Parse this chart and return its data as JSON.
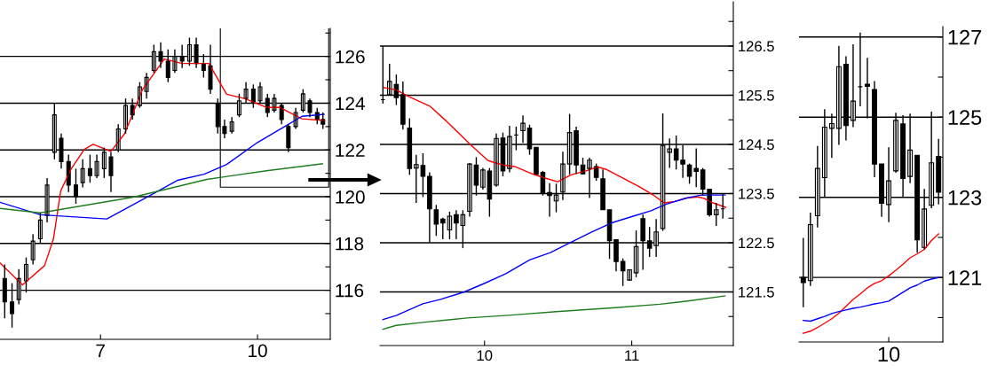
{
  "chart_data": [
    {
      "type": "candlestick",
      "xlim": [
        5.08,
        11.39
      ],
      "xticks": [
        7,
        10
      ],
      "ylim": [
        113.9,
        127.2
      ],
      "yticks": [
        {
          "value": 115,
          "label": null
        },
        116,
        {
          "value": 117,
          "label": null
        },
        118,
        {
          "value": 119,
          "label": null
        },
        120,
        {
          "value": 121,
          "label": null
        },
        122,
        {
          "value": 123,
          "label": null
        },
        124,
        {
          "value": 125,
          "label": null
        },
        126,
        {
          "value": 127,
          "label": null
        }
      ],
      "grid": "y",
      "x": [
        5.17,
        5.31,
        5.44,
        5.58,
        5.71,
        5.85,
        5.98,
        6.12,
        6.25,
        6.39,
        6.53,
        6.66,
        6.8,
        6.93,
        7.07,
        7.2,
        7.34,
        7.48,
        7.61,
        7.75,
        7.88,
        8.02,
        8.15,
        8.29,
        8.42,
        8.56,
        8.7,
        8.83,
        8.97,
        9.1,
        9.24,
        9.37,
        9.51,
        9.65,
        9.78,
        9.92,
        10.05,
        10.19,
        10.32,
        10.46,
        10.59,
        10.73,
        10.87,
        11.0,
        11.14,
        11.25
      ],
      "ohlc": [
        [
          116.5,
          117.1,
          114.8,
          115.5
        ],
        [
          115.5,
          116.3,
          114.4,
          115.0
        ],
        [
          115.6,
          116.9,
          115.4,
          116.5
        ],
        [
          116.4,
          117.4,
          115.9,
          117.1
        ],
        [
          117.3,
          118.4,
          117.1,
          118.1
        ],
        [
          118.2,
          119.3,
          118.0,
          119.0
        ],
        [
          119.2,
          120.8,
          118.9,
          120.5
        ],
        [
          121.9,
          124.0,
          121.6,
          123.5
        ],
        [
          122.5,
          122.7,
          121.2,
          121.5
        ],
        [
          121.5,
          121.8,
          120.2,
          120.5
        ],
        [
          120.5,
          121.2,
          119.7,
          120.0
        ],
        [
          120.6,
          121.6,
          120.4,
          121.2
        ],
        [
          121.2,
          121.8,
          120.6,
          120.9
        ],
        [
          120.9,
          121.8,
          120.8,
          121.5
        ],
        [
          121.2,
          122.1,
          120.8,
          121.9
        ],
        [
          121.7,
          121.9,
          120.2,
          120.9
        ],
        [
          122.0,
          123.1,
          121.9,
          122.9
        ],
        [
          122.9,
          124.2,
          122.7,
          123.9
        ],
        [
          123.9,
          124.2,
          123.3,
          123.5
        ],
        [
          123.9,
          124.9,
          123.8,
          124.7
        ],
        [
          124.5,
          125.3,
          124.2,
          125.1
        ],
        [
          125.4,
          126.5,
          125.3,
          126.2
        ],
        [
          126.2,
          126.6,
          125.5,
          125.8
        ],
        [
          125.8,
          126.3,
          124.9,
          125.1
        ],
        [
          125.4,
          126.3,
          125.3,
          126.0
        ],
        [
          126.0,
          126.5,
          125.5,
          125.8
        ],
        [
          125.8,
          126.8,
          125.6,
          126.5
        ],
        [
          126.5,
          126.8,
          125.5,
          125.7
        ],
        [
          125.7,
          126.1,
          125.1,
          125.4
        ],
        [
          125.6,
          126.5,
          124.4,
          124.6
        ],
        [
          124.0,
          124.2,
          122.7,
          123.0
        ],
        [
          123.0,
          123.3,
          122.5,
          122.7
        ],
        [
          122.8,
          123.4,
          122.7,
          123.2
        ],
        [
          123.5,
          124.4,
          123.4,
          124.1
        ],
        [
          124.2,
          124.9,
          124.0,
          124.6
        ],
        [
          124.6,
          124.8,
          123.8,
          124.0
        ],
        [
          124.1,
          124.9,
          124.0,
          124.7
        ],
        [
          124.2,
          124.4,
          123.4,
          123.6
        ],
        [
          123.7,
          124.4,
          123.6,
          124.2
        ],
        [
          123.9,
          124.0,
          123.1,
          123.3
        ],
        [
          123.0,
          123.1,
          121.9,
          122.1
        ],
        [
          123.0,
          123.8,
          122.9,
          123.6
        ],
        [
          123.7,
          124.6,
          123.6,
          124.4
        ],
        [
          124.1,
          124.2,
          123.4,
          123.6
        ],
        [
          123.6,
          123.8,
          123.1,
          123.3
        ],
        [
          123.3,
          123.6,
          122.9,
          123.1
        ]
      ],
      "series": [
        {
          "type": "line",
          "color": "#ff0000",
          "x": [
            5.08,
            5.51,
            5.93,
            6.1,
            6.24,
            6.44,
            6.69,
            6.86,
            7.2,
            7.46,
            7.8,
            8.22,
            8.56,
            9.07,
            9.41,
            9.75,
            10.17,
            10.42,
            10.85,
            11.27
          ],
          "values": [
            117.17,
            116.23,
            117.05,
            118.18,
            120.25,
            121.19,
            122.02,
            122.24,
            121.94,
            122.69,
            124.57,
            125.89,
            125.7,
            125.7,
            124.38,
            124.2,
            123.82,
            123.82,
            123.33,
            123.26
          ]
        },
        {
          "type": "line",
          "color": "#0000ff",
          "x": [
            5.08,
            5.85,
            7.12,
            7.8,
            8.47,
            8.98,
            9.41,
            10.0,
            10.51,
            10.85,
            11.27
          ],
          "values": [
            119.76,
            119.23,
            119.05,
            119.87,
            120.7,
            120.96,
            121.38,
            122.32,
            122.99,
            123.44,
            123.52
          ]
        },
        {
          "type": "line",
          "color": "#1e7d1e",
          "x": [
            5.08,
            5.85,
            7.63,
            9.03,
            10.17,
            11.24
          ],
          "values": [
            119.5,
            119.31,
            119.98,
            120.74,
            121.11,
            121.41
          ]
        }
      ]
    },
    {
      "type": "candlestick",
      "xlim": [
        9.29,
        11.69
      ],
      "xticks": [
        10,
        11
      ],
      "ylim": [
        120.41,
        127.4
      ],
      "yticks": [
        {
          "value": 121,
          "label": null
        },
        121.5,
        {
          "value": 122,
          "label": null
        },
        122.5,
        {
          "value": 123,
          "label": null
        },
        123.5,
        {
          "value": 124,
          "label": null
        },
        124.5,
        {
          "value": 125,
          "label": null
        },
        125.5,
        {
          "value": 126,
          "label": null
        },
        126.5,
        {
          "value": 127,
          "label": null
        }
      ],
      "grid": "y",
      "x": [
        9.31,
        9.355,
        9.401,
        9.446,
        9.491,
        9.536,
        9.582,
        9.627,
        9.672,
        9.717,
        9.763,
        9.808,
        9.853,
        9.899,
        9.944,
        9.989,
        10.034,
        10.08,
        10.125,
        10.17,
        10.215,
        10.261,
        10.306,
        10.351,
        10.396,
        10.442,
        10.487,
        10.532,
        10.578,
        10.623,
        10.668,
        10.713,
        10.759,
        10.804,
        10.849,
        10.894,
        10.94,
        10.985,
        11.03,
        11.076,
        11.121,
        11.166,
        11.211,
        11.257,
        11.302,
        11.347,
        11.392,
        11.438,
        11.483,
        11.528,
        11.574,
        11.619
      ],
      "ohlc": [
        [
          125.41,
          126.49,
          125.33,
          125.41
        ],
        [
          125.51,
          126.14,
          125.51,
          125.78
        ],
        [
          125.72,
          125.92,
          125.3,
          125.45
        ],
        [
          125.51,
          125.78,
          124.8,
          124.91
        ],
        [
          124.83,
          125.03,
          123.88,
          124.01
        ],
        [
          124.02,
          124.29,
          123.31,
          124.09
        ],
        [
          124.07,
          124.32,
          123.43,
          123.85
        ],
        [
          123.85,
          123.93,
          122.51,
          123.19
        ],
        [
          123.17,
          123.27,
          122.64,
          122.88
        ],
        [
          122.98,
          123.01,
          122.57,
          122.9
        ],
        [
          122.76,
          123.13,
          122.57,
          123.04
        ],
        [
          123.07,
          123.16,
          122.57,
          122.9
        ],
        [
          122.85,
          123.16,
          122.39,
          123.07
        ],
        [
          123.14,
          124.12,
          123.03,
          124.1
        ],
        [
          124.08,
          124.24,
          123.46,
          123.67
        ],
        [
          123.63,
          124.02,
          123.58,
          123.98
        ],
        [
          123.96,
          124.02,
          123.03,
          123.39
        ],
        [
          123.67,
          124.72,
          123.64,
          124.62
        ],
        [
          124.63,
          124.74,
          123.85,
          123.96
        ],
        [
          124.01,
          124.88,
          123.93,
          124.66
        ],
        [
          124.69,
          124.86,
          124.38,
          124.69
        ],
        [
          124.78,
          125.09,
          124.53,
          124.93
        ],
        [
          124.83,
          124.9,
          124.29,
          124.41
        ],
        [
          124.44,
          124.44,
          123.88,
          123.89
        ],
        [
          123.93,
          123.96,
          123.46,
          123.51
        ],
        [
          123.52,
          123.71,
          123.03,
          123.46
        ],
        [
          123.35,
          123.7,
          123.12,
          123.47
        ],
        [
          123.53,
          124.35,
          123.37,
          124.1
        ],
        [
          124.1,
          125.12,
          123.89,
          124.74
        ],
        [
          124.78,
          124.86,
          123.9,
          124.08
        ],
        [
          124.08,
          124.23,
          123.89,
          123.9
        ],
        [
          124.01,
          124.23,
          123.41,
          124.18
        ],
        [
          124.05,
          124.11,
          123.76,
          123.83
        ],
        [
          123.8,
          123.99,
          123.17,
          123.17
        ],
        [
          123.17,
          123.17,
          122.17,
          122.54
        ],
        [
          122.56,
          122.57,
          121.92,
          122.12
        ],
        [
          122.12,
          122.18,
          121.62,
          121.93
        ],
        [
          121.74,
          121.95,
          121.73,
          121.95
        ],
        [
          121.89,
          122.75,
          121.8,
          122.42
        ],
        [
          122.99,
          123.07,
          121.95,
          122.54
        ],
        [
          122.54,
          122.82,
          122.21,
          122.39
        ],
        [
          122.44,
          122.98,
          122.21,
          122.72
        ],
        [
          122.79,
          125.13,
          122.74,
          124.48
        ],
        [
          124.34,
          124.62,
          124.02,
          124.41
        ],
        [
          124.41,
          124.68,
          123.99,
          124.18
        ],
        [
          124.18,
          124.48,
          123.82,
          124.1
        ],
        [
          124.08,
          124.11,
          123.7,
          123.85
        ],
        [
          124.01,
          124.42,
          123.63,
          123.95
        ],
        [
          123.98,
          124.02,
          123.46,
          123.59
        ],
        [
          123.59,
          123.59,
          123.03,
          123.07
        ],
        [
          123.07,
          123.31,
          122.84,
          123.17
        ],
        [
          123.19,
          123.49,
          122.99,
          123.19
        ]
      ],
      "series": [
        {
          "type": "line",
          "color": "#ff0000",
          "x": [
            9.31,
            9.4,
            9.481,
            9.632,
            9.742,
            9.903,
            10.024,
            10.125,
            10.205,
            10.326,
            10.406,
            10.497,
            10.588,
            10.688,
            10.769,
            10.829,
            10.93,
            11.05,
            11.151,
            11.221,
            11.292,
            11.372,
            11.453,
            11.493,
            11.553,
            11.638
          ],
          "values": [
            125.66,
            125.61,
            125.48,
            125.27,
            124.97,
            124.5,
            124.17,
            124.08,
            124.05,
            123.9,
            123.82,
            123.74,
            123.88,
            123.96,
            124.04,
            123.99,
            123.83,
            123.64,
            123.46,
            123.31,
            123.34,
            123.41,
            123.43,
            123.4,
            123.31,
            123.22
          ]
        },
        {
          "type": "line",
          "color": "#0000ff",
          "x": [
            9.31,
            9.4,
            9.581,
            9.702,
            9.863,
            10.004,
            10.145,
            10.306,
            10.447,
            10.588,
            10.728,
            10.869,
            11.01,
            11.131,
            11.231,
            11.372,
            11.473,
            11.634
          ],
          "values": [
            120.94,
            121.02,
            121.26,
            121.35,
            121.5,
            121.68,
            121.87,
            122.15,
            122.3,
            122.51,
            122.72,
            122.91,
            123.04,
            123.15,
            123.28,
            123.41,
            123.47,
            123.47
          ]
        },
        {
          "type": "line",
          "color": "#1e7d1e",
          "x": [
            9.31,
            9.4,
            9.581,
            9.883,
            10.185,
            10.487,
            10.889,
            11.191,
            11.392,
            11.634
          ],
          "values": [
            120.74,
            120.82,
            120.88,
            120.97,
            121.03,
            121.1,
            121.18,
            121.25,
            121.32,
            121.42
          ]
        }
      ]
    },
    {
      "type": "candlestick",
      "ylim": [
        119.39,
        127.26
      ],
      "yticks": [
        {
          "value": 120,
          "label": null
        },
        121,
        {
          "value": 122,
          "label": null
        },
        123,
        {
          "value": 124,
          "label": null
        },
        125,
        {
          "value": 126,
          "label": null
        },
        127
      ],
      "grid": "y",
      "categories": [
        null,
        null,
        null,
        null,
        null,
        null,
        null,
        null,
        null,
        null,
        null,
        null,
        "10",
        null,
        null,
        null,
        null,
        null,
        null,
        null
      ],
      "ohlc": [
        [
          121.0,
          121.99,
          120.26,
          120.87
        ],
        [
          120.92,
          122.62,
          120.79,
          122.32
        ],
        [
          122.54,
          124.28,
          122.25,
          123.72
        ],
        [
          123.49,
          125.2,
          123.0,
          124.75
        ],
        [
          124.72,
          125.09,
          123.98,
          124.84
        ],
        [
          124.72,
          126.78,
          124.31,
          126.26
        ],
        [
          126.32,
          126.52,
          124.42,
          124.79
        ],
        [
          124.92,
          126.82,
          124.75,
          125.4
        ],
        [
          125.76,
          127.11,
          125.27,
          125.76
        ],
        [
          125.82,
          126.48,
          124.97,
          125.77
        ],
        [
          125.69,
          125.9,
          123.5,
          123.83
        ],
        [
          123.83,
          123.83,
          122.51,
          122.85
        ],
        [
          122.82,
          124.25,
          122.38,
          123.41
        ],
        [
          123.66,
          125.11,
          123.61,
          124.92
        ],
        [
          124.83,
          125.05,
          123.0,
          123.47
        ],
        [
          123.52,
          125.09,
          123.35,
          124.18
        ],
        [
          124.05,
          124.05,
          121.62,
          121.94
        ],
        [
          121.75,
          123.21,
          121.7,
          122.71
        ],
        [
          122.8,
          125.14,
          122.73,
          123.86
        ],
        [
          124.02,
          124.46,
          122.82,
          123.13
        ]
      ],
      "series": [
        {
          "type": "line",
          "color": "#ff0000",
          "values": [
            119.61,
            119.66,
            119.75,
            119.86,
            119.97,
            120.11,
            120.28,
            120.45,
            120.59,
            120.74,
            120.85,
            120.92,
            121.04,
            121.18,
            121.33,
            121.49,
            121.59,
            121.7,
            121.92,
            122.09
          ]
        },
        {
          "type": "line",
          "color": "#0000ff",
          "values": [
            119.93,
            119.91,
            119.97,
            120.03,
            120.1,
            120.15,
            120.19,
            120.23,
            120.26,
            120.3,
            120.34,
            120.37,
            120.41,
            120.52,
            120.63,
            120.74,
            120.81,
            120.91,
            120.96,
            121.0
          ]
        }
      ]
    }
  ]
}
